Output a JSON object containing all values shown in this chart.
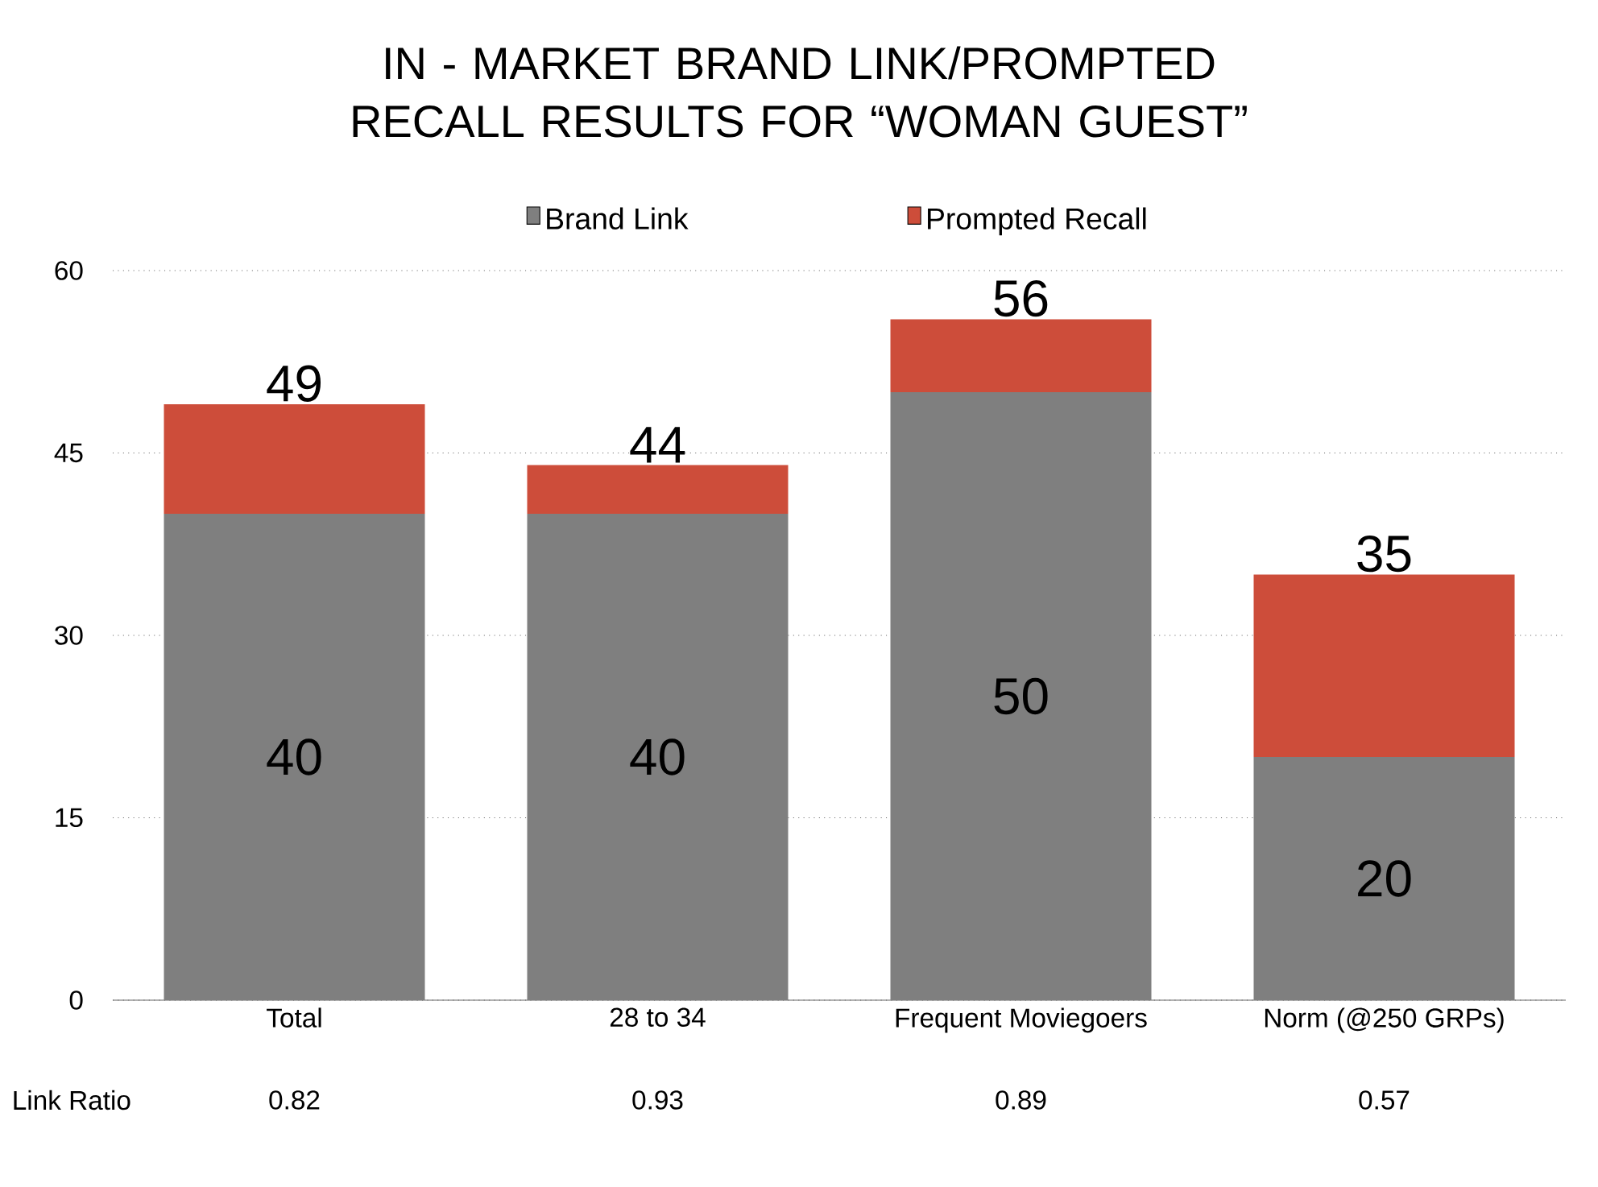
{
  "chart_data": {
    "type": "bar",
    "title": "IN - MARKET BRAND LINK/PROMPTED RECALL RESULTS FOR “WOMAN GUEST”",
    "categories": [
      "Total",
      "28 to 34",
      "Frequent Moviegoers",
      "Norm (@250 GRPs)"
    ],
    "stacked": true,
    "series": [
      {
        "name": "Brand Link",
        "color": "#7f7f7f",
        "values": [
          40,
          40,
          50,
          20
        ],
        "value_labels": [
          "40",
          "40",
          "50",
          "20"
        ]
      },
      {
        "name": "Prompted Recall",
        "color": "#cd4d3a",
        "values": [
          9,
          4,
          6,
          15
        ]
      }
    ],
    "totals": [
      "49",
      "44",
      "56",
      "35"
    ],
    "ylim": [
      0,
      60
    ],
    "yticks": [
      0,
      15,
      30,
      45,
      60
    ],
    "grid": "y",
    "legend": "top",
    "annotations": [
      "Link Ratio",
      "0.82",
      "0.93",
      "0.89",
      "0.57"
    ]
  }
}
